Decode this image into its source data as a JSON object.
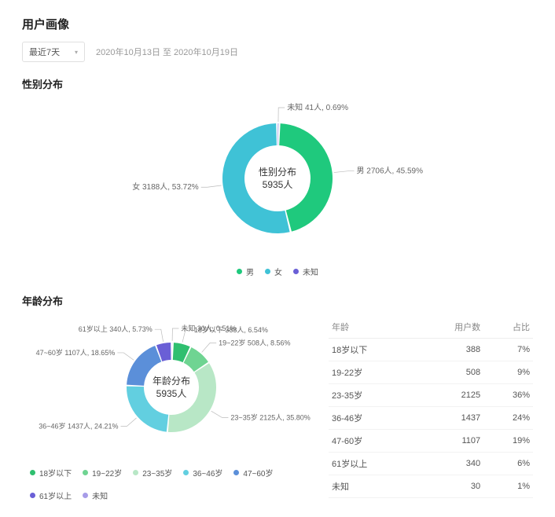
{
  "header": {
    "title": "用户画像",
    "period_selected": "最近7天",
    "date_range": "2020年10月13日 至 2020年10月19日"
  },
  "gender_chart": {
    "title": "性别分布",
    "type": "donut",
    "center_title": "性别分布",
    "center_value": "5935人",
    "inner_radius": 42,
    "outer_radius": 70,
    "background_color": "#ffffff",
    "label_fontsize": 10,
    "label_color": "#666666",
    "connector_color": "#bbbbbb",
    "slices": [
      {
        "label": "男",
        "count": 2706,
        "pct": 45.59,
        "color": "#1fc97d"
      },
      {
        "label": "女",
        "count": 3188,
        "pct": 53.72,
        "color": "#3fc2d6"
      },
      {
        "label": "未知",
        "count": 41,
        "pct": 0.69,
        "color": "#6a5fd6"
      }
    ],
    "legend": [
      {
        "label": "男",
        "color": "#1fc97d"
      },
      {
        "label": "女",
        "color": "#3fc2d6"
      },
      {
        "label": "未知",
        "color": "#6a5fd6"
      }
    ]
  },
  "age_chart": {
    "title": "年龄分布",
    "type": "donut",
    "center_title": "年龄分布",
    "center_value": "5935人",
    "inner_radius": 35,
    "outer_radius": 57,
    "background_color": "#ffffff",
    "label_fontsize": 9,
    "label_color": "#666666",
    "connector_color": "#bbbbbb",
    "slices": [
      {
        "label": "18岁以下",
        "count": 388,
        "pct": 6.54,
        "color": "#2fbf6f"
      },
      {
        "label": "19~22岁",
        "count": 508,
        "pct": 8.56,
        "color": "#6fd492"
      },
      {
        "label": "23~35岁",
        "count": 2125,
        "pct": 35.8,
        "color": "#b8e7c6"
      },
      {
        "label": "36~46岁",
        "count": 1437,
        "pct": 24.21,
        "color": "#62cfe0"
      },
      {
        "label": "47~60岁",
        "count": 1107,
        "pct": 18.65,
        "color": "#5b8fd9"
      },
      {
        "label": "61岁以上",
        "count": 340,
        "pct": 5.73,
        "color": "#6a5fd6"
      },
      {
        "label": "未知",
        "count": 30,
        "pct": 0.51,
        "color": "#a79ce8"
      }
    ],
    "legend": [
      {
        "label": "18岁以下",
        "color": "#2fbf6f"
      },
      {
        "label": "19~22岁",
        "color": "#6fd492"
      },
      {
        "label": "23~35岁",
        "color": "#b8e7c6"
      },
      {
        "label": "36~46岁",
        "color": "#62cfe0"
      },
      {
        "label": "47~60岁",
        "color": "#5b8fd9"
      },
      {
        "label": "61岁以上",
        "color": "#6a5fd6"
      },
      {
        "label": "未知",
        "color": "#a79ce8"
      }
    ]
  },
  "age_table": {
    "columns": [
      "年龄",
      "用户数",
      "占比"
    ],
    "rows": [
      [
        "18岁以下",
        "388",
        "7%"
      ],
      [
        "19-22岁",
        "508",
        "9%"
      ],
      [
        "23-35岁",
        "2125",
        "36%"
      ],
      [
        "36-46岁",
        "1437",
        "24%"
      ],
      [
        "47-60岁",
        "1107",
        "19%"
      ],
      [
        "61岁以上",
        "340",
        "6%"
      ],
      [
        "未知",
        "30",
        "1%"
      ]
    ]
  }
}
